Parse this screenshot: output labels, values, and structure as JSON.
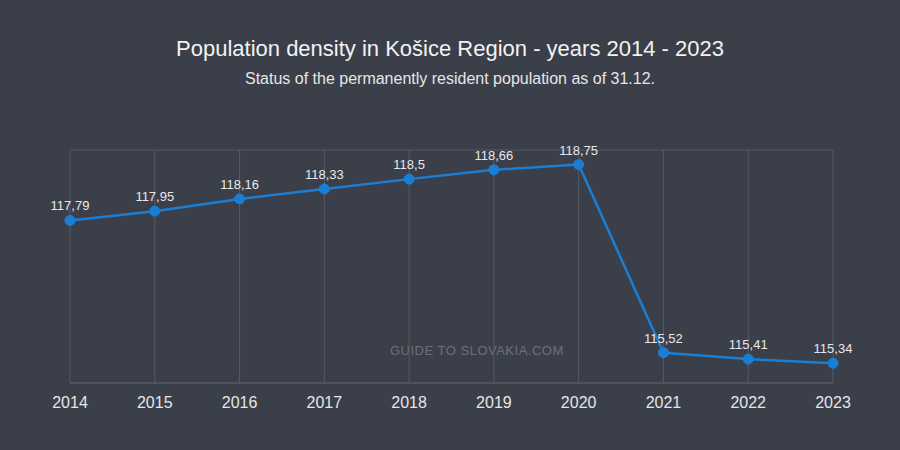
{
  "chart_data": {
    "type": "line",
    "title": "Population density in Košice Region - years 2014 - 2023",
    "subtitle": "Status of the permanently resident population as of 31.12.",
    "annotations": [
      "GUIDE TO SLOVAKIA.COM"
    ],
    "categories": [
      "2014",
      "2015",
      "2016",
      "2017",
      "2018",
      "2019",
      "2020",
      "2021",
      "2022",
      "2023"
    ],
    "values": [
      117.79,
      117.95,
      118.16,
      118.33,
      118.5,
      118.66,
      118.75,
      115.52,
      115.41,
      115.34
    ],
    "value_labels": [
      "117,79",
      "117,95",
      "118,16",
      "118,33",
      "118,5",
      "118,66",
      "118,75",
      "115,52",
      "115,41",
      "115,34"
    ],
    "color": "#1a7fd4",
    "ylim": [
      115,
      119
    ],
    "yticks": [
      115,
      115.5,
      116,
      116.5,
      117,
      117.5,
      118,
      118.5,
      119
    ],
    "grid": true,
    "data_labels": true,
    "marker": "circle",
    "tick_labels": "x"
  }
}
